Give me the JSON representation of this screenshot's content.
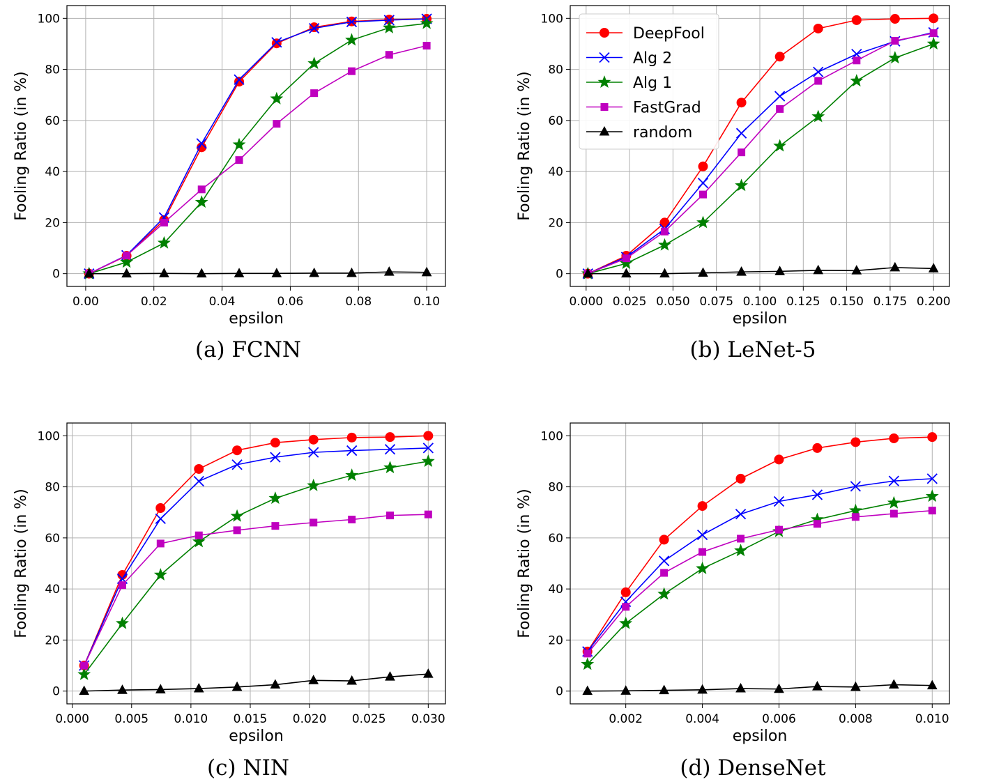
{
  "chart_data": [
    {
      "type": "line",
      "caption": "(a) FCNN",
      "xlabel": "epsilon",
      "ylabel": "Fooling Ratio (in %)",
      "xlim": [
        -0.0055,
        0.1055
      ],
      "ylim": [
        -5,
        105
      ],
      "xticks": [
        0.0,
        0.02,
        0.04,
        0.06,
        0.08,
        0.1
      ],
      "xtick_labels": [
        "0.00",
        "0.02",
        "0.04",
        "0.06",
        "0.08",
        "0.10"
      ],
      "yticks": [
        0,
        20,
        40,
        60,
        80,
        100
      ],
      "ytick_labels": [
        "0",
        "20",
        "40",
        "60",
        "80",
        "100"
      ],
      "grid": true,
      "legend": false,
      "x": [
        0.001,
        0.012,
        0.023,
        0.034,
        0.045,
        0.056,
        0.067,
        0.078,
        0.089,
        0.1
      ],
      "series": [
        {
          "name": "DeepFool",
          "values": [
            0,
            7,
            21,
            49.5,
            75.2,
            90.2,
            96.5,
            98.8,
            99.5,
            99.8
          ]
        },
        {
          "name": "Alg 2",
          "values": [
            0,
            7.2,
            22,
            51,
            76,
            90.6,
            96.1,
            98.6,
            99.3,
            99.8
          ]
        },
        {
          "name": "Alg 1",
          "values": [
            0,
            4.5,
            12,
            28,
            50.5,
            68.5,
            82.3,
            91.5,
            96.3,
            98
          ]
        },
        {
          "name": "FastGrad",
          "values": [
            0,
            7.1,
            20,
            33,
            44.5,
            58.7,
            70.7,
            79.3,
            85.7,
            89.3
          ]
        },
        {
          "name": "random",
          "values": [
            0,
            0,
            0.1,
            0,
            0.1,
            0.1,
            0.2,
            0.2,
            0.7,
            0.5
          ]
        }
      ]
    },
    {
      "type": "line",
      "caption": "(b) LeNet-5",
      "xlabel": "epsilon",
      "ylabel": "Fooling Ratio (in %)",
      "xlim": [
        -0.00915,
        0.20915
      ],
      "ylim": [
        -5,
        105
      ],
      "xticks": [
        0.0,
        0.025,
        0.05,
        0.075,
        0.1,
        0.125,
        0.15,
        0.175,
        0.2
      ],
      "xtick_labels": [
        "0.000",
        "0.025",
        "0.050",
        "0.075",
        "0.100",
        "0.125",
        "0.150",
        "0.175",
        "0.200"
      ],
      "yticks": [
        0,
        20,
        40,
        60,
        80,
        100
      ],
      "ytick_labels": [
        "0",
        "20",
        "40",
        "60",
        "80",
        "100"
      ],
      "grid": true,
      "legend": "top-left",
      "x": [
        0.001,
        0.0231,
        0.0452,
        0.0673,
        0.0894,
        0.1115,
        0.1336,
        0.1557,
        0.1778,
        0.2
      ],
      "series": [
        {
          "name": "DeepFool",
          "values": [
            0,
            7,
            20,
            42,
            67,
            85,
            96,
            99.3,
            99.8,
            100
          ]
        },
        {
          "name": "Alg 2",
          "values": [
            0,
            6.5,
            17.5,
            35.5,
            55,
            69.5,
            79,
            86,
            91,
            94.5
          ]
        },
        {
          "name": "Alg 1",
          "values": [
            0,
            4,
            11.2,
            20,
            34.5,
            50,
            61.5,
            75.5,
            84.5,
            90
          ]
        },
        {
          "name": "FastGrad",
          "values": [
            0,
            6,
            16.5,
            31,
            47.5,
            64.5,
            75.5,
            83.5,
            91.2,
            94.2
          ]
        },
        {
          "name": "random",
          "values": [
            0,
            0,
            0,
            0.3,
            0.7,
            0.9,
            1.3,
            1.2,
            2.4,
            2
          ]
        }
      ]
    },
    {
      "type": "line",
      "caption": "(c) NIN",
      "xlabel": "epsilon",
      "ylabel": "Fooling Ratio (in %)",
      "xlim": [
        -0.00045,
        0.03145
      ],
      "ylim": [
        -5,
        105
      ],
      "xticks": [
        0.0,
        0.005,
        0.01,
        0.015,
        0.02,
        0.025,
        0.03
      ],
      "xtick_labels": [
        "0.000",
        "0.005",
        "0.010",
        "0.015",
        "0.020",
        "0.025",
        "0.030"
      ],
      "yticks": [
        0,
        20,
        40,
        60,
        80,
        100
      ],
      "ytick_labels": [
        "0",
        "20",
        "40",
        "60",
        "80",
        "100"
      ],
      "grid": true,
      "legend": false,
      "x": [
        0.001,
        0.00422,
        0.00744,
        0.01067,
        0.01389,
        0.01711,
        0.02033,
        0.02356,
        0.02678,
        0.03
      ],
      "series": [
        {
          "name": "DeepFool",
          "values": [
            10,
            45.5,
            71.7,
            87,
            94.3,
            97.3,
            98.5,
            99.3,
            99.5,
            100
          ]
        },
        {
          "name": "Alg 2",
          "values": [
            10,
            44,
            67.5,
            82.2,
            88.7,
            91.6,
            93.5,
            94.2,
            94.7,
            95.2
          ]
        },
        {
          "name": "Alg 1",
          "values": [
            6.5,
            26.5,
            45.5,
            58.5,
            68.5,
            75.5,
            80.5,
            84.5,
            87.5,
            90
          ]
        },
        {
          "name": "FastGrad",
          "values": [
            10,
            41.5,
            57.8,
            61,
            63,
            64.7,
            66,
            67.2,
            68.8,
            69.2
          ]
        },
        {
          "name": "random",
          "values": [
            0,
            0.4,
            0.6,
            1,
            1.6,
            2.5,
            4.2,
            4,
            5.6,
            6.7
          ]
        }
      ]
    },
    {
      "type": "line",
      "caption": "(d) DenseNet",
      "xlabel": "epsilon",
      "ylabel": "Fooling Ratio (in %)",
      "xlim": [
        0.00055,
        0.01045
      ],
      "ylim": [
        -5,
        105
      ],
      "xticks": [
        0.002,
        0.004,
        0.006,
        0.008,
        0.01
      ],
      "xtick_labels": [
        "0.002",
        "0.004",
        "0.006",
        "0.008",
        "0.010"
      ],
      "yticks": [
        0,
        20,
        40,
        60,
        80,
        100
      ],
      "ytick_labels": [
        "0",
        "20",
        "40",
        "60",
        "80",
        "100"
      ],
      "grid": true,
      "legend": false,
      "x": [
        0.001,
        0.002,
        0.003,
        0.004,
        0.005,
        0.006,
        0.007,
        0.008,
        0.009,
        0.01
      ],
      "series": [
        {
          "name": "DeepFool",
          "values": [
            15.5,
            38.7,
            59.3,
            72.5,
            83.2,
            90.7,
            95.2,
            97.5,
            99,
            99.5
          ]
        },
        {
          "name": "Alg 2",
          "values": [
            15.5,
            35,
            51,
            61.2,
            69.3,
            74.3,
            76.9,
            80.2,
            82.3,
            83.2
          ]
        },
        {
          "name": "Alg 1",
          "values": [
            10.5,
            26.5,
            38,
            48,
            55,
            62.5,
            67.2,
            70.7,
            73.7,
            76.3
          ]
        },
        {
          "name": "FastGrad",
          "values": [
            14.7,
            33,
            46.3,
            54.5,
            59.7,
            63.2,
            65.5,
            68.2,
            69.5,
            70.7
          ]
        },
        {
          "name": "random",
          "values": [
            0,
            0.1,
            0.3,
            0.5,
            1,
            0.8,
            1.8,
            1.6,
            2.5,
            2.2
          ]
        }
      ]
    }
  ],
  "style": {
    "colors": {
      "DeepFool": "#ff0000",
      "Alg 2": "#0000ff",
      "Alg 1": "#008000",
      "FastGrad": "#bf00bf",
      "random": "#000000"
    },
    "markers": {
      "DeepFool": "circle",
      "Alg 2": "x",
      "Alg 1": "star",
      "FastGrad": "square",
      "random": "triangle"
    }
  }
}
